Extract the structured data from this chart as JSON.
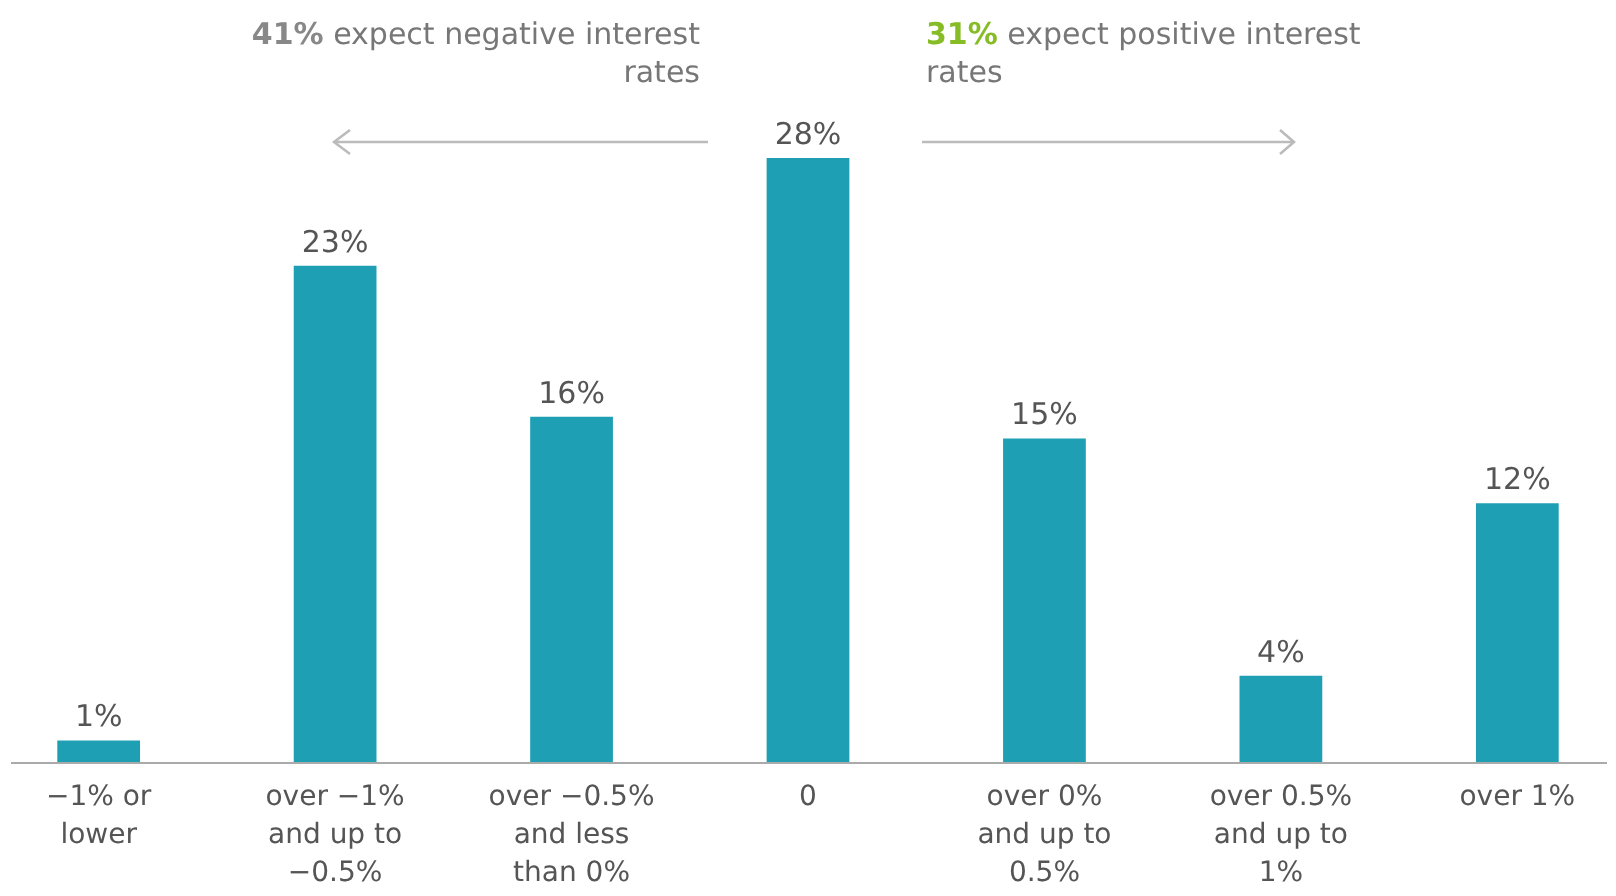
{
  "chart_data": {
    "type": "bar",
    "categories": [
      "−1% or lower",
      "over −1% and up to −0.5%",
      "over −0.5% and less than 0%",
      "0",
      "over 0% and up to 0.5%",
      "over 0.5% and up to 1%",
      "over 1%"
    ],
    "values": [
      1,
      23,
      16,
      28,
      15,
      4,
      12
    ],
    "value_labels": [
      "1%",
      "23%",
      "16%",
      "28%",
      "15%",
      "4%",
      "12%"
    ],
    "color": "#1f9fb4",
    "annotations": [
      "41% expect negative interest rates",
      "31% expect positive interest rates"
    ]
  }
}
